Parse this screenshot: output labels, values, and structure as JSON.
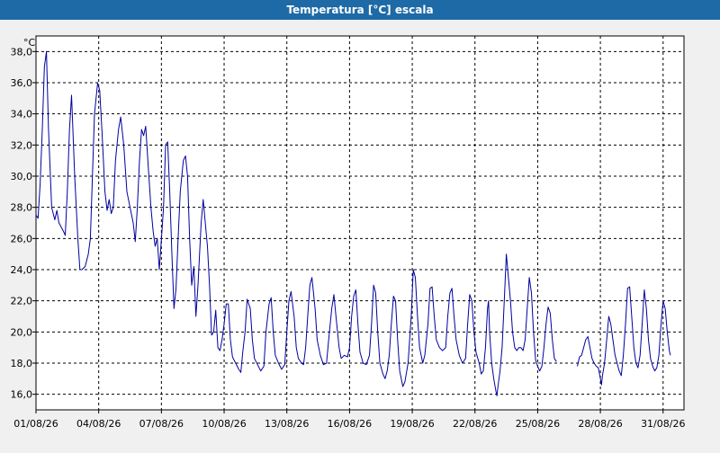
{
  "window": {
    "title": "Temperatura [°C] escala"
  },
  "chart_data": {
    "type": "line",
    "unit_label": "°C",
    "y_ticks": [
      "16,0",
      "18,0",
      "20,0",
      "22,0",
      "24,0",
      "26,0",
      "28,0",
      "30,0",
      "32,0",
      "34,0",
      "36,0",
      "38,0"
    ],
    "x_ticks": [
      "01/08/26",
      "04/08/26",
      "07/08/26",
      "10/08/26",
      "13/08/26",
      "16/08/26",
      "19/08/26",
      "22/08/26",
      "25/08/26",
      "28/08/26",
      "31/08/26"
    ],
    "x_range_days": [
      1,
      32
    ],
    "ylim": [
      15,
      39
    ],
    "grid": true,
    "line_color": "#0000a0",
    "series": [
      {
        "segments": [
          [
            [
              1.0,
              27.5
            ],
            [
              1.1,
              27.3
            ],
            [
              1.2,
              29.5
            ],
            [
              1.3,
              33.0
            ],
            [
              1.4,
              37.0
            ],
            [
              1.5,
              38.0
            ],
            [
              1.6,
              33.0
            ],
            [
              1.75,
              28.0
            ],
            [
              1.9,
              27.2
            ],
            [
              2.0,
              27.8
            ],
            [
              2.1,
              27.0
            ],
            [
              2.3,
              26.5
            ],
            [
              2.4,
              26.2
            ],
            [
              2.5,
              29.0
            ],
            [
              2.6,
              33.0
            ],
            [
              2.7,
              35.2
            ],
            [
              2.85,
              30.0
            ],
            [
              3.0,
              26.0
            ],
            [
              3.1,
              24.0
            ],
            [
              3.2,
              24.0
            ],
            [
              3.35,
              24.2
            ],
            [
              3.5,
              25.0
            ],
            [
              3.6,
              26.0
            ],
            [
              3.7,
              30.0
            ],
            [
              3.8,
              34.0
            ],
            [
              3.95,
              36.0
            ],
            [
              4.05,
              35.5
            ],
            [
              4.15,
              33.0
            ],
            [
              4.3,
              29.0
            ],
            [
              4.4,
              27.8
            ],
            [
              4.5,
              28.5
            ],
            [
              4.6,
              27.6
            ],
            [
              4.7,
              28.0
            ],
            [
              4.8,
              31.0
            ],
            [
              4.95,
              33.0
            ],
            [
              5.05,
              33.8
            ],
            [
              5.2,
              32.0
            ],
            [
              5.35,
              29.0
            ],
            [
              5.5,
              28.0
            ],
            [
              5.65,
              27.0
            ],
            [
              5.75,
              25.8
            ],
            [
              5.85,
              28.0
            ],
            [
              5.95,
              31.0
            ],
            [
              6.05,
              33.0
            ],
            [
              6.15,
              32.6
            ],
            [
              6.25,
              33.2
            ],
            [
              6.35,
              31.0
            ],
            [
              6.5,
              28.0
            ],
            [
              6.6,
              26.5
            ],
            [
              6.7,
              25.5
            ],
            [
              6.8,
              26.0
            ],
            [
              6.9,
              24.0
            ],
            [
              7.0,
              26.0
            ],
            [
              7.1,
              28.0
            ],
            [
              7.2,
              32.0
            ],
            [
              7.3,
              32.2
            ],
            [
              7.4,
              29.0
            ],
            [
              7.5,
              25.0
            ],
            [
              7.6,
              21.5
            ],
            [
              7.7,
              22.8
            ],
            [
              7.8,
              26.0
            ],
            [
              7.9,
              29.0
            ],
            [
              8.05,
              31.0
            ],
            [
              8.15,
              31.3
            ],
            [
              8.25,
              30.0
            ],
            [
              8.35,
              26.0
            ],
            [
              8.45,
              23.0
            ],
            [
              8.55,
              24.2
            ],
            [
              8.65,
              21.0
            ],
            [
              8.75,
              23.0
            ],
            [
              8.9,
              27.0
            ],
            [
              9.0,
              28.5
            ],
            [
              9.1,
              27.0
            ],
            [
              9.2,
              25.5
            ],
            [
              9.3,
              23.0
            ],
            [
              9.4,
              19.8
            ],
            [
              9.5,
              20.0
            ],
            [
              9.6,
              21.4
            ],
            [
              9.7,
              19.0
            ],
            [
              9.8,
              18.8
            ],
            [
              9.9,
              19.5
            ],
            [
              10.0,
              20.5
            ],
            [
              10.1,
              21.8
            ],
            [
              10.2,
              21.8
            ],
            [
              10.3,
              19.5
            ],
            [
              10.4,
              18.4
            ],
            [
              10.55,
              18.0
            ],
            [
              10.7,
              17.6
            ],
            [
              10.8,
              17.4
            ],
            [
              10.9,
              18.8
            ],
            [
              11.0,
              20.0
            ],
            [
              11.1,
              22.1
            ],
            [
              11.25,
              21.5
            ],
            [
              11.35,
              19.5
            ],
            [
              11.45,
              18.3
            ],
            [
              11.6,
              17.9
            ],
            [
              11.75,
              17.5
            ],
            [
              11.9,
              17.8
            ],
            [
              12.0,
              20.0
            ],
            [
              12.15,
              21.8
            ],
            [
              12.25,
              22.2
            ],
            [
              12.35,
              20.0
            ],
            [
              12.45,
              18.5
            ],
            [
              12.6,
              18.0
            ],
            [
              12.75,
              17.6
            ],
            [
              12.9,
              17.9
            ],
            [
              13.0,
              20.0
            ],
            [
              13.1,
              22.0
            ],
            [
              13.2,
              22.6
            ],
            [
              13.35,
              21.0
            ],
            [
              13.45,
              19.0
            ],
            [
              13.55,
              18.3
            ],
            [
              13.7,
              18.0
            ],
            [
              13.8,
              17.9
            ],
            [
              13.9,
              19.0
            ],
            [
              14.0,
              21.0
            ],
            [
              14.1,
              23.0
            ],
            [
              14.2,
              23.5
            ],
            [
              14.35,
              21.5
            ],
            [
              14.45,
              19.5
            ],
            [
              14.6,
              18.5
            ],
            [
              14.75,
              17.9
            ],
            [
              14.9,
              18.0
            ],
            [
              15.0,
              19.5
            ],
            [
              15.15,
              21.5
            ],
            [
              15.25,
              22.4
            ],
            [
              15.35,
              21.0
            ],
            [
              15.5,
              19.0
            ],
            [
              15.6,
              18.3
            ],
            [
              15.75,
              18.5
            ],
            [
              15.9,
              18.4
            ],
            [
              16.0,
              19.0
            ],
            [
              16.1,
              21.0
            ],
            [
              16.2,
              22.3
            ],
            [
              16.3,
              22.7
            ],
            [
              16.4,
              20.5
            ],
            [
              16.5,
              18.7
            ],
            [
              16.65,
              18.0
            ],
            [
              16.8,
              17.9
            ],
            [
              16.95,
              18.5
            ],
            [
              17.05,
              20.5
            ],
            [
              17.15,
              23.0
            ],
            [
              17.25,
              22.5
            ],
            [
              17.35,
              20.0
            ],
            [
              17.45,
              18.0
            ],
            [
              17.6,
              17.3
            ],
            [
              17.7,
              17.0
            ],
            [
              17.8,
              17.5
            ],
            [
              17.9,
              18.5
            ],
            [
              18.0,
              20.5
            ],
            [
              18.1,
              22.3
            ],
            [
              18.2,
              22.0
            ],
            [
              18.3,
              19.5
            ],
            [
              18.4,
              17.5
            ],
            [
              18.55,
              16.5
            ],
            [
              18.65,
              16.8
            ],
            [
              18.8,
              18.0
            ],
            [
              18.95,
              21.0
            ],
            [
              19.05,
              24.0
            ],
            [
              19.15,
              23.5
            ],
            [
              19.25,
              21.0
            ],
            [
              19.35,
              19.0
            ],
            [
              19.5,
              18.0
            ],
            [
              19.6,
              18.5
            ],
            [
              19.75,
              20.5
            ],
            [
              19.85,
              22.8
            ],
            [
              19.95,
              22.9
            ],
            [
              20.05,
              21.0
            ],
            [
              20.15,
              19.5
            ],
            [
              20.3,
              19.0
            ],
            [
              20.45,
              18.8
            ],
            [
              20.6,
              19.0
            ],
            [
              20.7,
              21.0
            ],
            [
              20.8,
              22.5
            ],
            [
              20.9,
              22.8
            ],
            [
              21.0,
              21.0
            ],
            [
              21.1,
              19.5
            ],
            [
              21.25,
              18.5
            ],
            [
              21.4,
              18.0
            ],
            [
              21.55,
              18.3
            ],
            [
              21.65,
              20.5
            ],
            [
              21.75,
              22.4
            ],
            [
              21.85,
              22.0
            ],
            [
              21.95,
              20.0
            ],
            [
              22.05,
              18.7
            ],
            [
              22.2,
              18.0
            ],
            [
              22.3,
              17.3
            ],
            [
              22.4,
              17.5
            ],
            [
              22.5,
              19.0
            ],
            [
              22.6,
              21.5
            ],
            [
              22.65,
              22.0
            ],
            [
              22.7,
              20.0
            ],
            [
              22.8,
              18.0
            ],
            [
              22.9,
              17.0
            ],
            [
              23.0,
              16.2
            ],
            [
              23.05,
              15.9
            ],
            [
              23.1,
              16.5
            ],
            [
              23.2,
              17.5
            ],
            [
              23.3,
              19.0
            ],
            [
              23.4,
              22.0
            ],
            [
              23.5,
              25.0
            ],
            [
              23.6,
              23.5
            ],
            [
              23.7,
              22.0
            ],
            [
              23.8,
              20.0
            ],
            [
              23.9,
              19.0
            ],
            [
              24.0,
              18.8
            ],
            [
              24.1,
              19.0
            ],
            [
              24.2,
              19.0
            ],
            [
              24.3,
              18.8
            ],
            [
              24.4,
              19.5
            ],
            [
              24.5,
              21.5
            ],
            [
              24.6,
              23.5
            ],
            [
              24.7,
              22.5
            ],
            [
              24.8,
              20.0
            ],
            [
              24.9,
              18.2
            ],
            [
              25.0,
              17.8
            ],
            [
              25.1,
              17.5
            ],
            [
              25.2,
              17.8
            ],
            [
              25.3,
              19.0
            ],
            [
              25.4,
              20.5
            ],
            [
              25.5,
              21.6
            ],
            [
              25.6,
              21.2
            ],
            [
              25.7,
              19.5
            ],
            [
              25.8,
              18.3
            ],
            [
              25.9,
              18.1
            ]
          ],
          [
            [
              26.9,
              17.8
            ],
            [
              27.0,
              18.4
            ],
            [
              27.1,
              18.5
            ],
            [
              27.2,
              19.0
            ],
            [
              27.3,
              19.5
            ],
            [
              27.4,
              19.7
            ],
            [
              27.5,
              19.0
            ],
            [
              27.6,
              18.3
            ],
            [
              27.7,
              18.0
            ],
            [
              27.8,
              17.8
            ],
            [
              27.9,
              17.7
            ],
            [
              28.0,
              17.0
            ],
            [
              28.05,
              16.6
            ],
            [
              28.1,
              17.2
            ],
            [
              28.2,
              18.0
            ],
            [
              28.3,
              19.5
            ],
            [
              28.4,
              21.0
            ],
            [
              28.5,
              20.5
            ],
            [
              28.6,
              19.5
            ],
            [
              28.7,
              18.5
            ],
            [
              28.8,
              18.0
            ],
            [
              28.9,
              17.5
            ],
            [
              29.0,
              17.2
            ],
            [
              29.1,
              18.5
            ],
            [
              29.2,
              20.5
            ],
            [
              29.3,
              22.8
            ],
            [
              29.4,
              22.9
            ],
            [
              29.5,
              21.0
            ],
            [
              29.6,
              19.0
            ],
            [
              29.7,
              18.0
            ],
            [
              29.8,
              17.7
            ],
            [
              29.9,
              18.5
            ],
            [
              30.0,
              20.5
            ],
            [
              30.1,
              22.7
            ],
            [
              30.2,
              21.5
            ],
            [
              30.3,
              19.5
            ],
            [
              30.4,
              18.3
            ],
            [
              30.5,
              17.8
            ],
            [
              30.6,
              17.5
            ],
            [
              30.7,
              17.7
            ],
            [
              30.8,
              18.5
            ],
            [
              30.9,
              20.5
            ],
            [
              31.0,
              22.0
            ],
            [
              31.1,
              21.5
            ],
            [
              31.2,
              20.0
            ],
            [
              31.3,
              18.8
            ],
            [
              31.35,
              18.5
            ]
          ]
        ]
      }
    ]
  }
}
